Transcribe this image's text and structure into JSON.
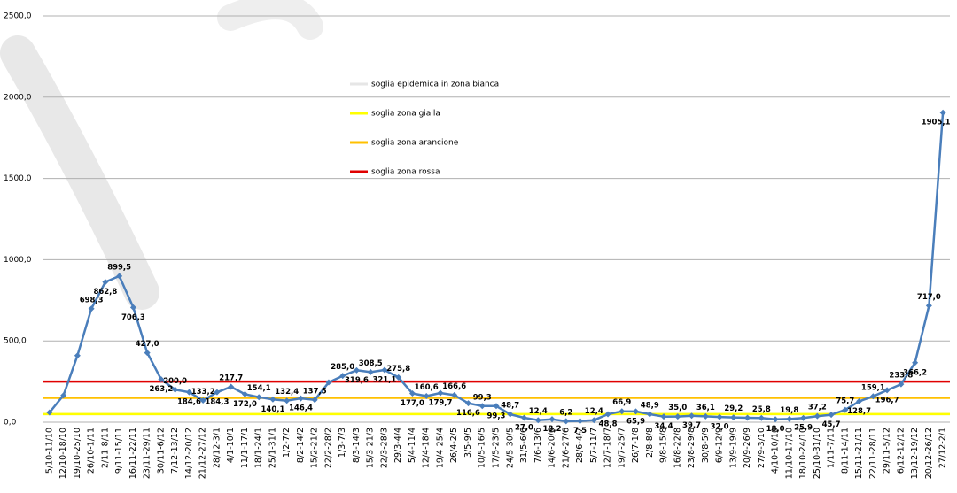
{
  "chart_data": {
    "type": "line",
    "categories": [
      "5/10-11/10",
      "12/10-18/10",
      "19/10-25/10",
      "26/10-1/11",
      "2/11-8/11",
      "9/11-15/11",
      "16/11-22/11",
      "23/11-29/11",
      "30/11-6/12",
      "7/12-13/12",
      "14/12-20/12",
      "21/12-27/12",
      "28/12-3/1",
      "4/1-10/1",
      "11/1-17/1",
      "18/1-24/1",
      "25/1-31/1",
      "1/2-7/2",
      "8/2-14/2",
      "15/2-21/2",
      "22/2-28/2",
      "1/3-7/3",
      "8/3-14/3",
      "15/3-21/3",
      "22/3-28/3",
      "29/3-4/4",
      "5/4-11/4",
      "12/4-18/4",
      "19/4-25/4",
      "26/4-2/5",
      "3/5-9/5",
      "10/5-16/5",
      "17/5-23/5",
      "24/5-30/5",
      "31/5-6/6",
      "7/6-13/6",
      "14/6-20/6",
      "21/6-27/6",
      "28/6-4/7",
      "5/7-11/7",
      "12/7-18/7",
      "19/7-25/7",
      "26/7-1/8",
      "2/8-8/8",
      "9/8-15/8",
      "16/8-22/8",
      "23/8-29/8",
      "30/8-5/9",
      "6/9-12/9",
      "13/9-19/9",
      "20/9-26/9",
      "27/9-3/10",
      "4/10-10/10",
      "11/10-17/10",
      "18/10-24/10",
      "25/10-31/10",
      "1/11-7/11",
      "8/11-14/11",
      "15/11-21/11",
      "22/11-28/11",
      "29/11-5/12",
      "6/12-12/12",
      "13/12-19/12",
      "20/12-26/12",
      "27/12-2/1"
    ],
    "values": [
      60,
      165,
      410,
      698.3,
      862.8,
      899.5,
      706.3,
      427.0,
      263.2,
      200.0,
      184.6,
      133.2,
      184.3,
      217.7,
      172.0,
      154.1,
      140.1,
      132.4,
      146.4,
      137.5,
      245,
      285.0,
      319.6,
      308.5,
      321.1,
      275.8,
      177.0,
      160.6,
      179.7,
      166.6,
      116.6,
      99.3,
      99.3,
      48.7,
      27.0,
      12.4,
      18.2,
      6.2,
      7.5,
      12.4,
      48.8,
      66.9,
      65.9,
      48.9,
      34.4,
      35.0,
      39.7,
      36.1,
      32.0,
      29.2,
      27,
      25.8,
      18.0,
      19.8,
      25.9,
      37.2,
      45.7,
      75.7,
      128.7,
      159.1,
      196.7,
      233.8,
      366.2,
      717.0,
      1905.1
    ],
    "value_labels": [
      null,
      null,
      null,
      "698,3",
      "862,8",
      "899,5",
      "706,3",
      "427,0",
      "263,2",
      "200,0",
      "184,6",
      "133,2",
      "184,3",
      "217,7",
      "172,0",
      "154,1",
      "140,1",
      "132,4",
      "146,4",
      "137,5",
      null,
      "285,0",
      "319,6",
      "308,5",
      "321,1",
      "275,8",
      "177,0",
      "160,6",
      "179,7",
      "166,6",
      "116,6",
      "99,3",
      "99,3",
      "48,7",
      "27,0",
      "12,4",
      "18,2",
      "6,2",
      "7,5",
      "12,4",
      "48,8",
      "66,9",
      "65,9",
      "48,9",
      "34,4",
      "35,0",
      "39,7",
      "36,1",
      "32,0",
      "29,2",
      null,
      "25,8",
      "18,0",
      "19,8",
      "25,9",
      "37,2",
      "45,7",
      "75,7",
      "128,7",
      "159,1",
      "196,7",
      "233,8",
      "366,2",
      "717,0",
      "1905,1"
    ],
    "color": "#4a7ebb",
    "thresholds": [
      {
        "name": "soglia epidemica in zona bianca",
        "color": "#e6e6e6",
        "value": 50
      },
      {
        "name": "soglia zona gialla",
        "color": "#ffff00",
        "value": 50
      },
      {
        "name": "soglia zona arancione",
        "color": "#ffc000",
        "value": 150
      },
      {
        "name": "soglia zona rossa",
        "color": "#e00000",
        "value": 250
      }
    ],
    "ylim": [
      0,
      2500
    ],
    "yticks": [
      {
        "value": 0,
        "label": "0,0"
      },
      {
        "value": 500,
        "label": "500,0"
      },
      {
        "value": 1000,
        "label": "1000,0"
      },
      {
        "value": 1500,
        "label": "1500,0"
      },
      {
        "value": 2000,
        "label": "2000,0"
      },
      {
        "value": 2500,
        "label": "2500,0"
      }
    ],
    "grid": true
  }
}
